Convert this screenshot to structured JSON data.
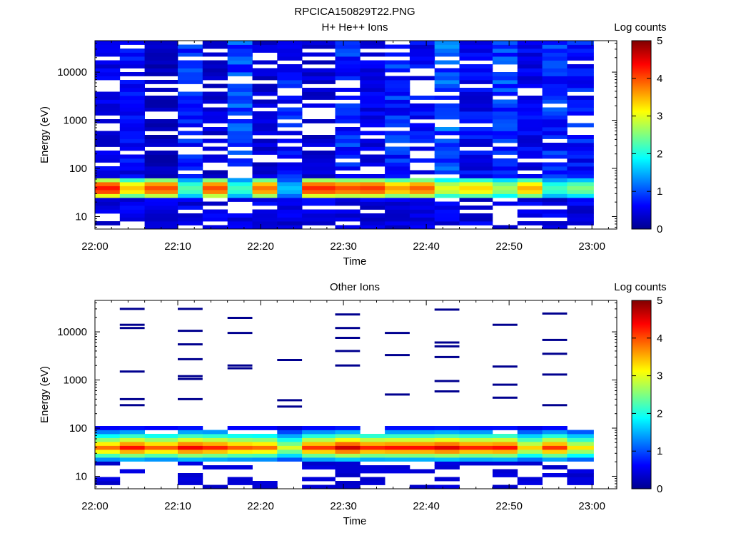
{
  "figure": {
    "title": "RPCICA150829T22.PNG"
  },
  "chart_data": [
    {
      "type": "heatmap",
      "title": "H+ He++ Ions",
      "xlabel": "Time",
      "ylabel": "Energy (eV)",
      "x_ticks": [
        "22:00",
        "22:10",
        "22:20",
        "22:30",
        "22:40",
        "22:50",
        "23:00"
      ],
      "y_ticks": [
        10,
        100,
        1000,
        10000
      ],
      "y_scale": "log",
      "ylim": [
        5.5,
        45000
      ],
      "xlim": [
        "22:00",
        "23:03"
      ],
      "colorbar": {
        "label": "Log counts",
        "ticks": [
          0,
          1,
          2,
          3,
          4,
          5
        ],
        "range": [
          0,
          5
        ],
        "colormap": "jet"
      },
      "columns_start": [
        "22:00",
        "22:03",
        "22:06",
        "22:10",
        "22:13",
        "22:16",
        "22:19",
        "22:22",
        "22:25",
        "22:29",
        "22:32",
        "22:35",
        "22:38",
        "22:41",
        "22:44",
        "22:48",
        "22:51",
        "22:54",
        "22:57"
      ],
      "peak_band_eV": [
        25,
        60
      ],
      "peak_log_counts": [
        4.3,
        3.4,
        4.0,
        2.3,
        4.0,
        2.2,
        3.8,
        1.6,
        4.2,
        4.0,
        4.1,
        3.6,
        3.9,
        3.0,
        3.3,
        2.7,
        3.5,
        2.2,
        2.5
      ],
      "background_log_counts": [
        0.5,
        0.6,
        0.3,
        0.8,
        0.4,
        0.9,
        0.4,
        0.7,
        0.4,
        0.8,
        0.5,
        0.8,
        0.6,
        1.0,
        0.6,
        0.9,
        0.6,
        0.8,
        0.7
      ]
    },
    {
      "type": "heatmap",
      "title": "Other Ions",
      "xlabel": "Time",
      "ylabel": "Energy (eV)",
      "x_ticks": [
        "22:00",
        "22:10",
        "22:20",
        "22:30",
        "22:40",
        "22:50",
        "23:00"
      ],
      "y_ticks": [
        10,
        100,
        1000,
        10000
      ],
      "y_scale": "log",
      "ylim": [
        5.5,
        45000
      ],
      "xlim": [
        "22:00",
        "23:03"
      ],
      "colorbar": {
        "label": "Log counts",
        "ticks": [
          0,
          1,
          2,
          3,
          4,
          5
        ],
        "range": [
          0,
          5
        ],
        "colormap": "jet"
      },
      "columns_start": [
        "22:00",
        "22:03",
        "22:06",
        "22:10",
        "22:13",
        "22:16",
        "22:19",
        "22:22",
        "22:25",
        "22:29",
        "22:32",
        "22:35",
        "22:38",
        "22:41",
        "22:44",
        "22:48",
        "22:51",
        "22:54",
        "22:57"
      ],
      "peak_band_eV": [
        25,
        60
      ],
      "peak_log_counts": [
        3.9,
        4.4,
        4.0,
        4.5,
        4.3,
        4.0,
        3.9,
        3.0,
        4.2,
        4.7,
        4.3,
        4.4,
        4.4,
        4.6,
        4.3,
        4.4,
        3.4,
        4.2,
        3.3
      ],
      "high_energy_lines_eV": [
        [],
        [
          30000,
          14000,
          12000,
          1500,
          400,
          300
        ],
        [],
        [
          30000,
          10500,
          5500,
          2700,
          1200,
          1050,
          400
        ],
        [],
        [
          19500,
          9500,
          2000,
          1750
        ],
        [],
        [
          2600,
          380,
          280
        ],
        [],
        [
          23000,
          12000,
          7500,
          4000,
          2000
        ],
        [],
        [
          9500,
          3300,
          500
        ],
        [],
        [
          29000,
          6000,
          5000,
          3000,
          950,
          580
        ],
        [],
        [
          14000,
          1900,
          800,
          430
        ],
        [],
        [
          24000,
          6800,
          3500,
          1300,
          300
        ],
        []
      ]
    }
  ]
}
